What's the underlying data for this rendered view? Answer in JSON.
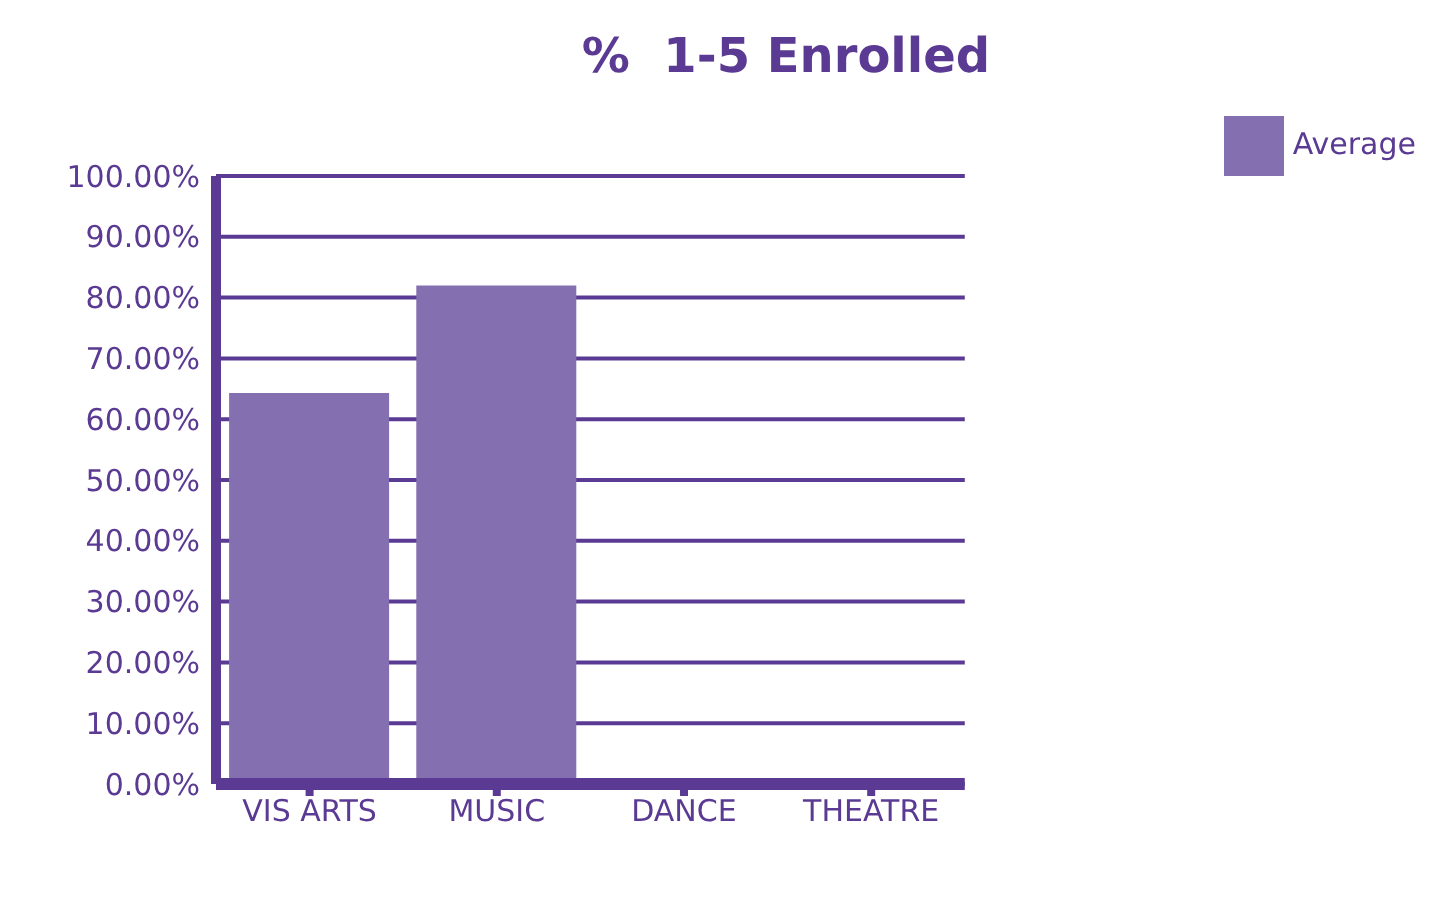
{
  "chart_data": {
    "type": "bar",
    "title": "%  1-5 Enrolled",
    "categories": [
      "VIS ARTS",
      "MUSIC",
      "DANCE",
      "THEATRE"
    ],
    "series": [
      {
        "name": "Average",
        "color": "#8470b0",
        "values": [
          64.3,
          82,
          0,
          0
        ]
      }
    ],
    "ylim": [
      0,
      100
    ],
    "yticks": [
      {
        "value": 0,
        "label": "0.00%"
      },
      {
        "value": 10,
        "label": "10.00%"
      },
      {
        "value": 20,
        "label": "20.00%"
      },
      {
        "value": 30,
        "label": "30.00%"
      },
      {
        "value": 40,
        "label": "40.00%"
      },
      {
        "value": 50,
        "label": "50.00%"
      },
      {
        "value": 60,
        "label": "60.00%"
      },
      {
        "value": 70,
        "label": "70.00%"
      },
      {
        "value": 80,
        "label": "80.00%"
      },
      {
        "value": 90,
        "label": "90.00%"
      },
      {
        "value": 100,
        "label": "100.00%"
      }
    ],
    "grid": "y",
    "legend": "top right"
  }
}
